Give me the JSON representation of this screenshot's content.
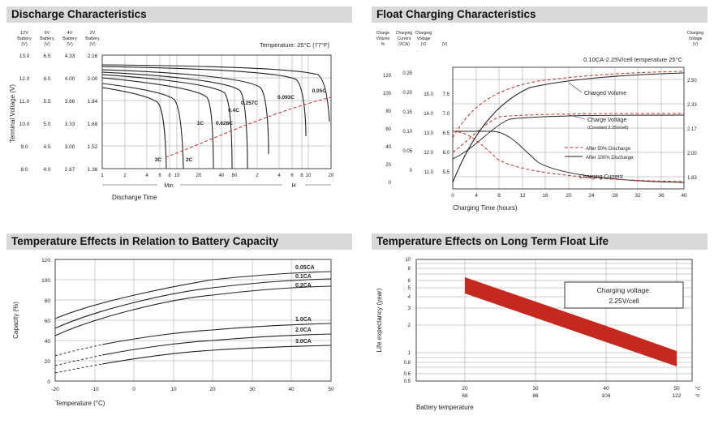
{
  "page": {
    "background": "#ffffff"
  },
  "colors": {
    "accent_red": "#c23322",
    "band_red": "#c5281c",
    "title_bar_bg": "#d9d9d9",
    "grid": "#9a9a9a"
  },
  "panels": [
    {
      "title": "Discharge Characteristics"
    },
    {
      "title": "Float Charging Characteristics"
    },
    {
      "title": "Temperature Effects in Relation to Battery Capacity"
    },
    {
      "title": "Temperature Effects on Long Term Float Life"
    }
  ],
  "chart_data": [
    {
      "type": "line",
      "title": "Discharge Characteristics",
      "annotation": "Temperature: 25°C (77°F)",
      "xlabel": "Discharge Time",
      "x_scale": "log",
      "x_unit_min": "Min",
      "x_unit_hour": "H",
      "x_ticks_min": [
        "1",
        "2",
        "4",
        "6",
        "8",
        "10",
        "20",
        "40",
        "60"
      ],
      "x_ticks_hour": [
        "2",
        "4",
        "6",
        "8",
        "10",
        "20"
      ],
      "ylabel": "Terminal Voltage (V)",
      "y_axes": [
        {
          "header": [
            "12V",
            "Battery",
            "(V)"
          ],
          "ticks": [
            "13.0",
            "12.0",
            "11.0",
            "10.0",
            "9.0",
            "8.0"
          ]
        },
        {
          "header": [
            "6V",
            "Battery",
            "(V)"
          ],
          "ticks": [
            "6.5",
            "6.0",
            "5.5",
            "5.0",
            "4.5",
            "4.0"
          ]
        },
        {
          "header": [
            "4V",
            "Battery",
            "(V)"
          ],
          "ticks": [
            "4.33",
            "4.00",
            "3.66",
            "3.33",
            "3.00",
            "2.67"
          ]
        },
        {
          "header": [
            "2V",
            "Battery",
            "(V)"
          ],
          "ticks": [
            "2.16",
            "2.00",
            "1.84",
            "1.68",
            "1.52",
            "1.36"
          ]
        }
      ],
      "cutoff_line": {
        "style": "dashed-red"
      },
      "series": [
        {
          "name": "3C",
          "x_minutes": [
            1,
            2,
            4,
            6,
            7
          ],
          "y_v_per_cell": [
            1.93,
            1.9,
            1.83,
            1.6,
            1.36
          ]
        },
        {
          "name": "2C",
          "x_minutes": [
            1,
            2,
            6,
            10,
            12
          ],
          "y_v_per_cell": [
            1.96,
            1.94,
            1.86,
            1.65,
            1.36
          ]
        },
        {
          "name": "1C",
          "x_minutes": [
            1,
            5,
            15,
            25,
            32
          ],
          "y_v_per_cell": [
            2.0,
            1.97,
            1.88,
            1.7,
            1.36
          ]
        },
        {
          "name": "0.628C",
          "x_minutes": [
            1,
            10,
            30,
            50,
            60
          ],
          "y_v_per_cell": [
            2.02,
            1.99,
            1.9,
            1.7,
            1.36
          ]
        },
        {
          "name": "0.4C",
          "x_minutes": [
            1,
            20,
            60,
            90,
            100
          ],
          "y_v_per_cell": [
            2.04,
            2.0,
            1.92,
            1.7,
            1.36
          ]
        },
        {
          "name": "0.257C",
          "x_minutes": [
            1,
            30,
            120,
            160,
            180
          ],
          "y_v_per_cell": [
            2.06,
            2.03,
            1.94,
            1.75,
            1.45
          ]
        },
        {
          "name": "0.093C",
          "x_minutes": [
            1,
            60,
            300,
            480,
            540
          ],
          "y_v_per_cell": [
            2.08,
            2.06,
            1.99,
            1.8,
            1.56
          ]
        },
        {
          "name": "0.05C",
          "x_minutes": [
            1,
            120,
            600,
            1020,
            1200
          ],
          "y_v_per_cell": [
            2.1,
            2.08,
            2.02,
            1.85,
            1.62
          ]
        }
      ]
    },
    {
      "type": "line",
      "title": "Float Charging Characteristics",
      "annotation": "0.10CA-2.25V/cell  temperature 25°C",
      "xlabel": "Charging Time (hours)",
      "x_ticks": [
        "0",
        "4",
        "8",
        "12",
        "16",
        "20",
        "24",
        "28",
        "32",
        "36",
        "40"
      ],
      "left_axes": [
        {
          "header": [
            "Charge",
            "Volume",
            "%"
          ],
          "ticks": [
            "120",
            "100",
            "80",
            "60",
            "40",
            "20",
            "0"
          ]
        },
        {
          "header": [
            "Charging",
            "Current",
            "(XCA)"
          ],
          "ticks": [
            "0.25",
            "0.20",
            "0.15",
            "0.10",
            "0.05",
            "0"
          ]
        },
        {
          "header": [
            "Charging",
            "Voltage",
            "(V)"
          ],
          "ticks": [
            "15.0",
            "14.0",
            "13.0",
            "12.0",
            "11.0"
          ]
        },
        {
          "header": [
            "(V)"
          ],
          "ticks": [
            "7.5",
            "7.0",
            "6.5",
            "6.0",
            "5.5"
          ]
        }
      ],
      "right_axis": {
        "header": [
          "Charging",
          "Voltage",
          "(V)"
        ],
        "ticks": [
          "2.50",
          "2.33",
          "2.17",
          "2.00",
          "1.83"
        ]
      },
      "curve_labels": {
        "charged_volume": "Charged Volume",
        "charge_voltage": "Charge Voltage",
        "charge_voltage_sub": "(Constant 2.25v/cell)",
        "charging_current": "Charging Current"
      },
      "legend": [
        {
          "label": "After  50% Discharge",
          "style": "dashed-red"
        },
        {
          "label": "After 100% Discharge",
          "style": "solid-black"
        }
      ],
      "x_hours": [
        0,
        4,
        8,
        12,
        16,
        24,
        32,
        40
      ],
      "series": [
        {
          "name": "Charged Volume (after 100% discharge)",
          "values_pct": [
            0,
            55,
            85,
            100,
            107,
            111,
            113,
            114
          ]
        },
        {
          "name": "Charged Volume (after 50% discharge)",
          "values_pct": [
            50,
            82,
            97,
            105,
            109,
            112,
            113,
            114
          ]
        },
        {
          "name": "Charge Voltage (after 100% discharge)",
          "values_v_per_cell": [
            1.95,
            2.1,
            2.2,
            2.25,
            2.25,
            2.25,
            2.25,
            2.25
          ]
        },
        {
          "name": "Charge Voltage (after 50% discharge)",
          "values_v_per_cell": [
            2.0,
            2.15,
            2.23,
            2.25,
            2.25,
            2.25,
            2.25,
            2.25
          ]
        },
        {
          "name": "Charging Current (after 100% discharge)",
          "values_xca": [
            0.1,
            0.1,
            0.07,
            0.04,
            0.02,
            0.01,
            0.005,
            0.003
          ]
        },
        {
          "name": "Charging Current (after 50% discharge)",
          "values_xca": [
            0.1,
            0.08,
            0.05,
            0.03,
            0.015,
            0.008,
            0.004,
            0.003
          ]
        }
      ]
    },
    {
      "type": "line",
      "title": "Temperature Effects in Relation to Battery Capacity",
      "xlabel": "Temperature (°C)",
      "ylabel": "Capacity (%)",
      "x_ticks": [
        "-20",
        "-10",
        "0",
        "10",
        "20",
        "30",
        "40",
        "50"
      ],
      "y_ticks": [
        "120",
        "100",
        "80",
        "60",
        "40",
        "20",
        "0"
      ],
      "x_c": [
        -20,
        -10,
        0,
        10,
        20,
        30,
        40,
        50
      ],
      "series": [
        {
          "name": "0.05CA",
          "values_pct": [
            62,
            73,
            82,
            89,
            95,
            100,
            104,
            108
          ]
        },
        {
          "name": "0.1CA",
          "values_pct": [
            52,
            63,
            72,
            80,
            87,
            93,
            98,
            101
          ]
        },
        {
          "name": "0.2CA",
          "values_pct": [
            45,
            56,
            65,
            73,
            80,
            86,
            91,
            94
          ]
        },
        {
          "name": "1.0CA",
          "values_pct": [
            25,
            33,
            40,
            45,
            50,
            53,
            55,
            57
          ]
        },
        {
          "name": "2.0CA",
          "values_pct": [
            15,
            23,
            30,
            35,
            40,
            43,
            45,
            46
          ]
        },
        {
          "name": "3.0CA",
          "values_pct": [
            8,
            14,
            20,
            25,
            30,
            32,
            34,
            35
          ]
        }
      ]
    },
    {
      "type": "area",
      "title": "Temperature Effects on Long Term Float Life",
      "xlabel": "Battery temperature",
      "ylabel": "Life expectancy (year)",
      "y_scale": "log",
      "y_ticks": [
        "10",
        "8",
        "6",
        "5",
        "4",
        "3",
        "2",
        "1",
        "0.8",
        "0.6",
        "0.5"
      ],
      "x_ticks_c": [
        "20",
        "30",
        "40",
        "50"
      ],
      "x_ticks_f": [
        "68",
        "86",
        "104",
        "122"
      ],
      "x_unit_c": "°C",
      "x_unit_f": "°F",
      "annotation_lines": [
        "Charging voltage:",
        "2.25V/cell"
      ],
      "band": {
        "x_c": [
          20,
          30,
          40,
          50
        ],
        "upper_years": [
          6.5,
          3.5,
          1.9,
          1.05
        ],
        "lower_years": [
          4.3,
          2.4,
          1.3,
          0.72
        ],
        "color": "#c5281c"
      }
    }
  ]
}
